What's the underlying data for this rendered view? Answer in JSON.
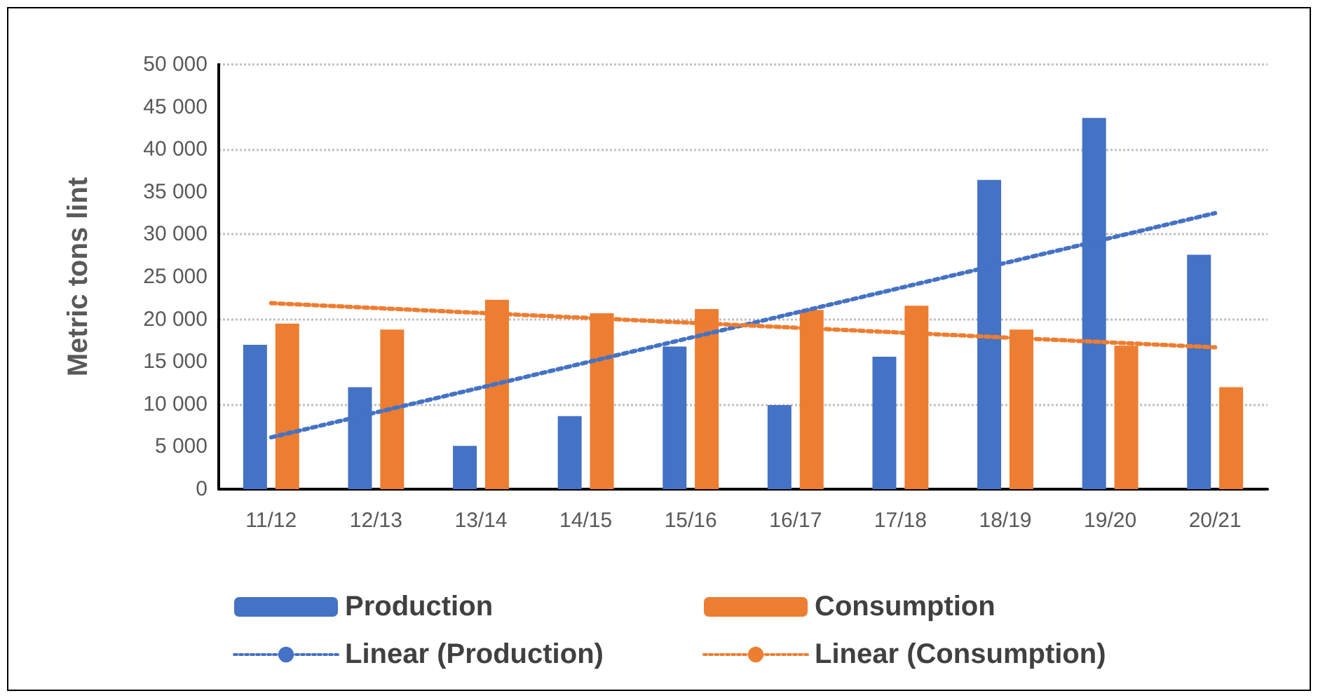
{
  "chart_data": {
    "type": "bar",
    "ylabel": "Metric tons lint",
    "categories": [
      "11/12",
      "12/13",
      "13/14",
      "14/15",
      "15/16",
      "16/17",
      "17/18",
      "18/19",
      "19/20",
      "20/21"
    ],
    "series": [
      {
        "name": "Production",
        "color": "#4472c4",
        "values": [
          17000,
          12000,
          5100,
          8600,
          16800,
          9900,
          15600,
          36400,
          43700,
          27600
        ]
      },
      {
        "name": "Consumption",
        "color": "#ed7d31",
        "values": [
          19500,
          18800,
          22300,
          20700,
          21200,
          21100,
          21600,
          18800,
          16900,
          12000
        ]
      },
      {
        "name": "Linear (Production)",
        "type": "line",
        "color": "#4472c4",
        "x": [
          "11/12",
          "20/21"
        ],
        "values": [
          6100,
          32500
        ],
        "line_style": "dotted",
        "marker": "none"
      },
      {
        "name": "Linear (Consumption)",
        "type": "line",
        "color": "#ed7d31",
        "x": [
          "11/12",
          "20/21"
        ],
        "values": [
          21900,
          16700
        ],
        "line_style": "dotted",
        "marker": "none"
      }
    ],
    "ylim": [
      0,
      50000
    ],
    "yticks": [
      0,
      5000,
      10000,
      15000,
      20000,
      25000,
      30000,
      35000,
      40000,
      45000,
      50000
    ],
    "grid": "y",
    "legend": "bottom"
  }
}
